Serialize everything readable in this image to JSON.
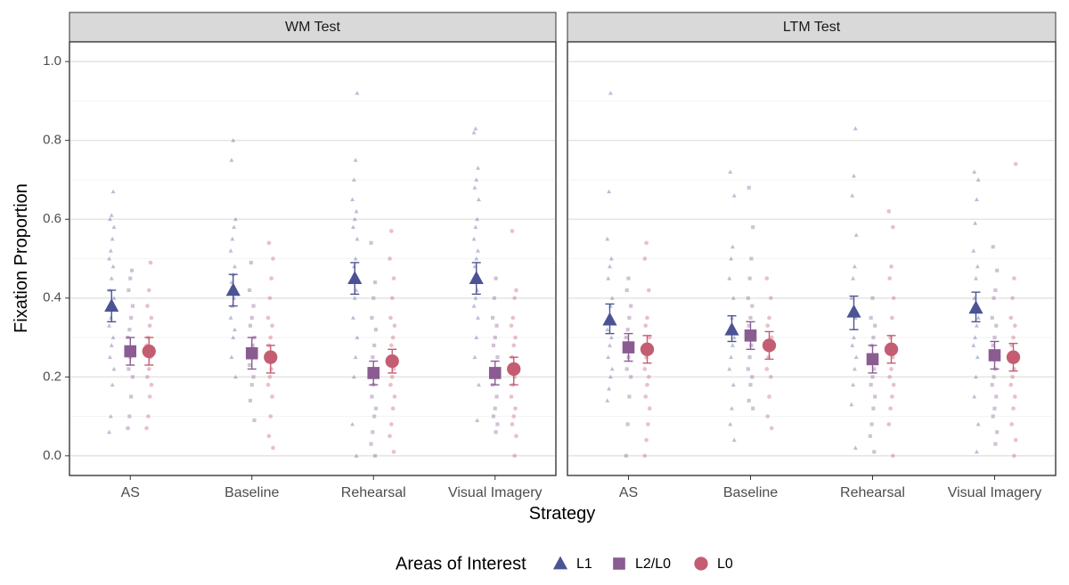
{
  "chart_data": {
    "type": "scatter",
    "subtype": "faceted point-range with jittered raw points",
    "ylabel": "Fixation Proportion",
    "xlabel": "Strategy",
    "ylim": [
      -0.05,
      1.05
    ],
    "yticks": [
      0.0,
      0.2,
      0.4,
      0.6,
      0.8,
      1.0
    ],
    "ytick_labels": [
      "0.0",
      "0.2",
      "0.4",
      "0.6",
      "0.8",
      "1.0"
    ],
    "categories": [
      "AS",
      "Baseline",
      "Rehearsal",
      "Visual Imagery"
    ],
    "legend": {
      "title": "Areas of Interest",
      "position": "bottom",
      "entries": [
        {
          "name": "L1",
          "shape": "triangle",
          "color": "#4b5394"
        },
        {
          "name": "L2/L0",
          "shape": "square",
          "color": "#8a5c92"
        },
        {
          "name": "L0",
          "shape": "circle",
          "color": "#c45d72"
        }
      ]
    },
    "panels": [
      {
        "title": "WM Test",
        "series": [
          {
            "name": "L1",
            "means": [
              0.38,
              0.42,
              0.45,
              0.45
            ],
            "ci_low": [
              0.34,
              0.38,
              0.41,
              0.41
            ],
            "ci_high": [
              0.42,
              0.46,
              0.49,
              0.49
            ],
            "raw": [
              [
                0.06,
                0.1,
                0.18,
                0.22,
                0.25,
                0.28,
                0.3,
                0.33,
                0.35,
                0.38,
                0.4,
                0.42,
                0.45,
                0.48,
                0.5,
                0.52,
                0.55,
                0.58,
                0.6,
                0.61,
                0.67
              ],
              [
                0.2,
                0.25,
                0.3,
                0.32,
                0.35,
                0.38,
                0.4,
                0.42,
                0.44,
                0.46,
                0.48,
                0.52,
                0.55,
                0.58,
                0.6,
                0.75,
                0.8
              ],
              [
                0.0,
                0.08,
                0.2,
                0.25,
                0.3,
                0.35,
                0.4,
                0.42,
                0.45,
                0.48,
                0.5,
                0.55,
                0.58,
                0.6,
                0.62,
                0.65,
                0.7,
                0.75,
                0.92
              ],
              [
                0.09,
                0.18,
                0.25,
                0.3,
                0.35,
                0.38,
                0.4,
                0.42,
                0.45,
                0.48,
                0.5,
                0.52,
                0.55,
                0.58,
                0.6,
                0.65,
                0.68,
                0.7,
                0.73,
                0.82,
                0.83
              ]
            ]
          },
          {
            "name": "L2/L0",
            "means": [
              0.265,
              0.26,
              0.21,
              0.21
            ],
            "ci_low": [
              0.23,
              0.22,
              0.18,
              0.18
            ],
            "ci_high": [
              0.3,
              0.3,
              0.24,
              0.24
            ],
            "raw": [
              [
                0.07,
                0.1,
                0.15,
                0.2,
                0.22,
                0.25,
                0.27,
                0.3,
                0.32,
                0.35,
                0.38,
                0.42,
                0.45,
                0.47
              ],
              [
                0.09,
                0.14,
                0.18,
                0.2,
                0.23,
                0.25,
                0.28,
                0.3,
                0.33,
                0.35,
                0.38,
                0.42,
                0.49
              ],
              [
                0.0,
                0.03,
                0.06,
                0.1,
                0.12,
                0.15,
                0.18,
                0.2,
                0.22,
                0.25,
                0.28,
                0.32,
                0.35,
                0.4,
                0.44,
                0.54
              ],
              [
                0.06,
                0.08,
                0.1,
                0.12,
                0.15,
                0.18,
                0.2,
                0.22,
                0.25,
                0.28,
                0.3,
                0.33,
                0.35,
                0.4,
                0.45
              ]
            ]
          },
          {
            "name": "L0",
            "means": [
              0.265,
              0.25,
              0.24,
              0.22
            ],
            "ci_low": [
              0.23,
              0.21,
              0.21,
              0.18
            ],
            "ci_high": [
              0.3,
              0.28,
              0.27,
              0.25
            ],
            "raw": [
              [
                0.07,
                0.1,
                0.15,
                0.18,
                0.2,
                0.22,
                0.25,
                0.28,
                0.3,
                0.33,
                0.35,
                0.38,
                0.42,
                0.49
              ],
              [
                0.02,
                0.05,
                0.1,
                0.15,
                0.18,
                0.2,
                0.22,
                0.25,
                0.28,
                0.3,
                0.33,
                0.35,
                0.4,
                0.45,
                0.5,
                0.54
              ],
              [
                0.01,
                0.05,
                0.08,
                0.12,
                0.15,
                0.18,
                0.2,
                0.22,
                0.25,
                0.28,
                0.3,
                0.33,
                0.35,
                0.4,
                0.45,
                0.5,
                0.57
              ],
              [
                0.0,
                0.05,
                0.08,
                0.1,
                0.12,
                0.15,
                0.18,
                0.2,
                0.22,
                0.25,
                0.28,
                0.3,
                0.33,
                0.35,
                0.4,
                0.42,
                0.57
              ]
            ]
          }
        ]
      },
      {
        "title": "LTM Test",
        "series": [
          {
            "name": "L1",
            "means": [
              0.345,
              0.32,
              0.365,
              0.375
            ],
            "ci_low": [
              0.31,
              0.29,
              0.32,
              0.34
            ],
            "ci_high": [
              0.385,
              0.355,
              0.405,
              0.415
            ],
            "raw": [
              [
                0.14,
                0.17,
                0.2,
                0.22,
                0.25,
                0.28,
                0.3,
                0.32,
                0.35,
                0.38,
                0.4,
                0.45,
                0.48,
                0.5,
                0.55,
                0.67,
                0.92
              ],
              [
                0.04,
                0.08,
                0.12,
                0.18,
                0.22,
                0.25,
                0.28,
                0.3,
                0.32,
                0.35,
                0.4,
                0.45,
                0.5,
                0.53,
                0.66,
                0.72
              ],
              [
                0.02,
                0.13,
                0.18,
                0.22,
                0.25,
                0.28,
                0.3,
                0.35,
                0.4,
                0.45,
                0.48,
                0.56,
                0.66,
                0.71,
                0.83
              ],
              [
                0.01,
                0.08,
                0.15,
                0.2,
                0.25,
                0.28,
                0.3,
                0.33,
                0.35,
                0.4,
                0.45,
                0.48,
                0.52,
                0.59,
                0.65,
                0.7,
                0.72
              ]
            ]
          },
          {
            "name": "L2/L0",
            "means": [
              0.275,
              0.305,
              0.245,
              0.255
            ],
            "ci_low": [
              0.24,
              0.27,
              0.21,
              0.22
            ],
            "ci_high": [
              0.31,
              0.34,
              0.28,
              0.29
            ],
            "raw": [
              [
                0.0,
                0.08,
                0.15,
                0.2,
                0.22,
                0.25,
                0.28,
                0.3,
                0.32,
                0.35,
                0.38,
                0.42,
                0.45
              ],
              [
                0.12,
                0.14,
                0.18,
                0.2,
                0.22,
                0.25,
                0.28,
                0.3,
                0.33,
                0.35,
                0.38,
                0.4,
                0.45,
                0.5,
                0.58,
                0.68
              ],
              [
                0.01,
                0.05,
                0.08,
                0.12,
                0.15,
                0.18,
                0.2,
                0.22,
                0.25,
                0.28,
                0.3,
                0.33,
                0.35,
                0.4
              ],
              [
                0.03,
                0.06,
                0.1,
                0.12,
                0.15,
                0.18,
                0.2,
                0.22,
                0.25,
                0.28,
                0.3,
                0.33,
                0.35,
                0.4,
                0.42,
                0.47,
                0.53
              ]
            ]
          },
          {
            "name": "L0",
            "means": [
              0.27,
              0.28,
              0.27,
              0.25
            ],
            "ci_low": [
              0.235,
              0.245,
              0.235,
              0.215
            ],
            "ci_high": [
              0.305,
              0.315,
              0.305,
              0.285
            ],
            "raw": [
              [
                0.0,
                0.04,
                0.08,
                0.12,
                0.15,
                0.18,
                0.2,
                0.22,
                0.25,
                0.28,
                0.3,
                0.33,
                0.35,
                0.42,
                0.5,
                0.54
              ],
              [
                0.07,
                0.1,
                0.15,
                0.2,
                0.22,
                0.25,
                0.28,
                0.3,
                0.33,
                0.35,
                0.4,
                0.45
              ],
              [
                0.0,
                0.08,
                0.12,
                0.15,
                0.18,
                0.2,
                0.22,
                0.25,
                0.28,
                0.3,
                0.35,
                0.4,
                0.45,
                0.48,
                0.58,
                0.62
              ],
              [
                0.0,
                0.04,
                0.08,
                0.12,
                0.15,
                0.18,
                0.2,
                0.22,
                0.25,
                0.28,
                0.3,
                0.33,
                0.35,
                0.4,
                0.45,
                0.74
              ]
            ]
          }
        ]
      }
    ]
  }
}
